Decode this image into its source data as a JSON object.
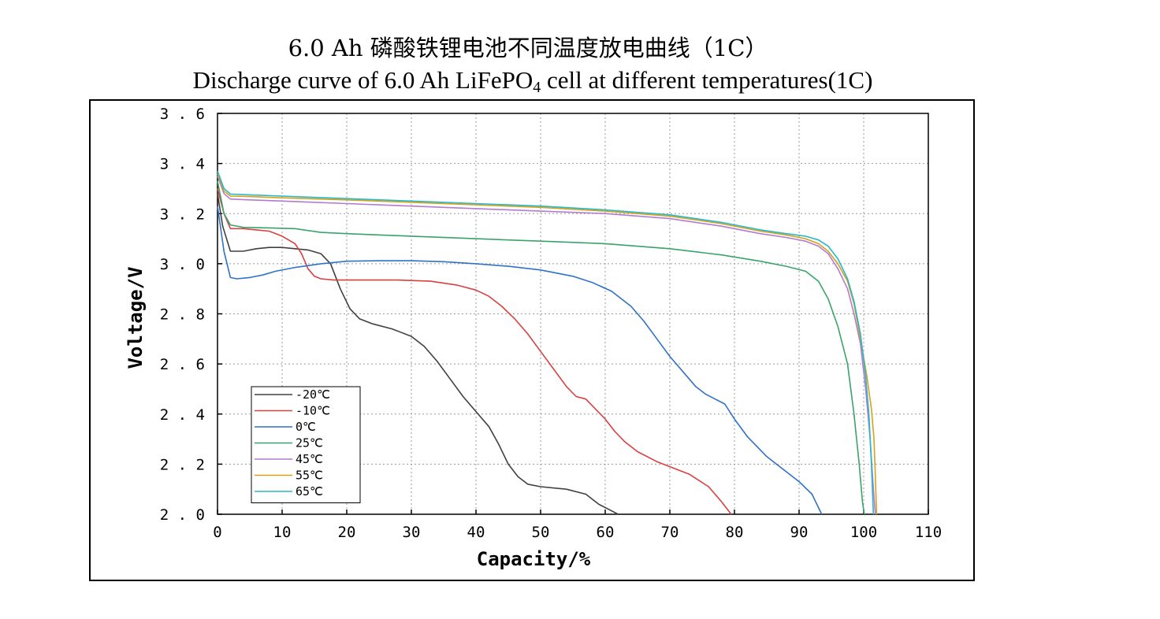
{
  "title_cn": "6.0 Ah 磷酸铁锂电池不同温度放电曲线（1C）",
  "title_en_main": "Discharge curve of 6.0 Ah LiFePO",
  "title_en_sub": "4",
  "title_en_rest": " cell at different temperatures(1C)",
  "chart_data": {
    "type": "line",
    "title": "6.0 Ah 磷酸铁锂电池不同温度放电曲线（1C）",
    "subtitle": "Discharge curve of 6.0 Ah LiFePO4 cell at different temperatures(1C)",
    "xlabel": "Capacity/%",
    "ylabel": "Voltage/V",
    "xlim": [
      0,
      110
    ],
    "ylim": [
      2.0,
      3.6
    ],
    "xticks": [
      "0",
      "10",
      "20",
      "30",
      "40",
      "50",
      "60",
      "70",
      "80",
      "90",
      "100",
      "110"
    ],
    "yticks": [
      "2.0",
      "2.2",
      "2.4",
      "2.6",
      "2.8",
      "3.0",
      "3.2",
      "3.4",
      "3.6"
    ],
    "grid": true,
    "legend_position": "bottom-left",
    "series": [
      {
        "name": "-20℃",
        "color": "#404040",
        "x": [
          0,
          0.8,
          2,
          4,
          6,
          8,
          10,
          12,
          14,
          16,
          17.5,
          19,
          20.5,
          22,
          24,
          27,
          30,
          32,
          34,
          36,
          38,
          40,
          42,
          43.5,
          45,
          46.5,
          48,
          50,
          54,
          57,
          59,
          60.5,
          62
        ],
        "y": [
          3.28,
          3.15,
          3.05,
          3.05,
          3.06,
          3.065,
          3.065,
          3.06,
          3.055,
          3.04,
          3.0,
          2.9,
          2.82,
          2.78,
          2.76,
          2.74,
          2.71,
          2.67,
          2.61,
          2.54,
          2.47,
          2.41,
          2.35,
          2.28,
          2.2,
          2.15,
          2.12,
          2.11,
          2.1,
          2.08,
          2.04,
          2.02,
          2.0
        ]
      },
      {
        "name": "-10℃",
        "color": "#d94040",
        "x": [
          0,
          1,
          2,
          4,
          6,
          8,
          10,
          12,
          13,
          14,
          15,
          16,
          18,
          22,
          28,
          33,
          37,
          40,
          42,
          44,
          46,
          48,
          50,
          52,
          54,
          55.5,
          57,
          58.5,
          60,
          61.5,
          63,
          65,
          68,
          71,
          73,
          76,
          78,
          79.5
        ],
        "y": [
          3.3,
          3.2,
          3.14,
          3.14,
          3.135,
          3.13,
          3.11,
          3.08,
          3.04,
          2.98,
          2.95,
          2.94,
          2.935,
          2.935,
          2.935,
          2.93,
          2.915,
          2.895,
          2.87,
          2.83,
          2.78,
          2.72,
          2.65,
          2.58,
          2.51,
          2.47,
          2.46,
          2.42,
          2.38,
          2.33,
          2.29,
          2.25,
          2.21,
          2.18,
          2.16,
          2.11,
          2.05,
          2.0
        ]
      },
      {
        "name": "0℃",
        "color": "#2f72c7",
        "x": [
          0,
          1,
          2,
          3,
          5,
          7,
          9,
          12,
          16,
          20,
          25,
          30,
          35,
          40,
          45,
          50,
          55,
          58,
          61,
          64,
          66,
          68,
          70,
          72,
          74,
          75.5,
          77,
          78.5,
          80,
          82,
          85,
          88,
          90,
          92,
          93.5
        ],
        "y": [
          3.23,
          3.05,
          2.945,
          2.94,
          2.945,
          2.955,
          2.97,
          2.985,
          3.0,
          3.01,
          3.012,
          3.012,
          3.008,
          3.0,
          2.99,
          2.975,
          2.95,
          2.925,
          2.89,
          2.83,
          2.77,
          2.7,
          2.63,
          2.57,
          2.51,
          2.48,
          2.46,
          2.44,
          2.38,
          2.31,
          2.23,
          2.17,
          2.13,
          2.08,
          2.0
        ]
      },
      {
        "name": "25℃",
        "color": "#3aa36a",
        "x": [
          0,
          1,
          2,
          4,
          8,
          12,
          16,
          20,
          30,
          40,
          50,
          60,
          70,
          78,
          84,
          88,
          91,
          93,
          94.5,
          96,
          97.5,
          98.5,
          99.3,
          99.8,
          100.1
        ],
        "y": [
          3.33,
          3.2,
          3.155,
          3.145,
          3.143,
          3.14,
          3.125,
          3.12,
          3.11,
          3.1,
          3.09,
          3.08,
          3.06,
          3.035,
          3.01,
          2.99,
          2.97,
          2.93,
          2.86,
          2.75,
          2.6,
          2.4,
          2.2,
          2.05,
          2.0
        ]
      },
      {
        "name": "45℃",
        "color": "#b47ad0",
        "x": [
          0,
          1,
          2,
          5,
          10,
          20,
          30,
          40,
          50,
          60,
          70,
          78,
          84,
          88,
          91,
          93,
          94.5,
          96,
          97.5,
          98.5,
          99.5,
          100.3,
          101,
          101.5,
          101.8
        ],
        "y": [
          3.35,
          3.28,
          3.258,
          3.255,
          3.25,
          3.24,
          3.23,
          3.22,
          3.21,
          3.2,
          3.18,
          3.15,
          3.12,
          3.105,
          3.09,
          3.07,
          3.04,
          2.98,
          2.9,
          2.8,
          2.68,
          2.5,
          2.3,
          2.1,
          2.0
        ]
      },
      {
        "name": "55℃",
        "color": "#d6a21b",
        "x": [
          0,
          1,
          2,
          5,
          10,
          20,
          30,
          40,
          50,
          60,
          70,
          78,
          84,
          88,
          91,
          93,
          94.5,
          96,
          97.5,
          98.5,
          99.5,
          100.5,
          101.2,
          101.6,
          101.8,
          102
        ],
        "y": [
          3.36,
          3.29,
          3.27,
          3.268,
          3.263,
          3.255,
          3.245,
          3.235,
          3.225,
          3.21,
          3.19,
          3.16,
          3.13,
          3.115,
          3.1,
          3.08,
          3.05,
          3.0,
          2.93,
          2.84,
          2.7,
          2.55,
          2.42,
          2.3,
          2.15,
          2.0
        ]
      },
      {
        "name": "65℃",
        "color": "#28b8c8",
        "x": [
          0,
          1,
          2,
          5,
          10,
          20,
          30,
          40,
          50,
          60,
          70,
          78,
          84,
          88,
          91,
          93,
          94.5,
          96,
          97.5,
          98.5,
          99.5,
          100.3,
          100.8,
          101.2,
          101.5
        ],
        "y": [
          3.37,
          3.3,
          3.278,
          3.275,
          3.27,
          3.26,
          3.25,
          3.24,
          3.23,
          3.215,
          3.195,
          3.165,
          3.135,
          3.12,
          3.11,
          3.095,
          3.07,
          3.02,
          2.94,
          2.85,
          2.72,
          2.55,
          2.4,
          2.2,
          2.0
        ]
      }
    ]
  }
}
